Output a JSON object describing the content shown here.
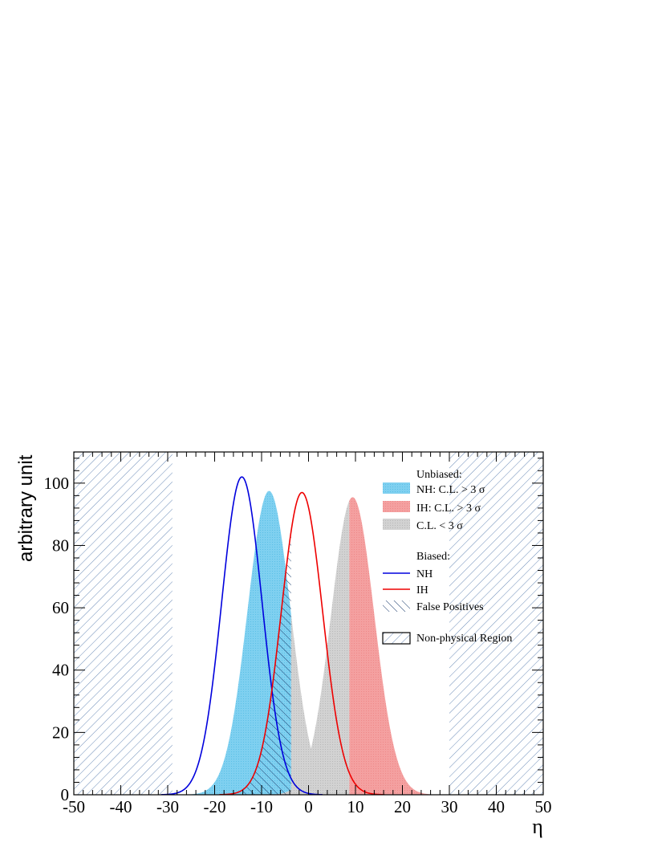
{
  "chart_data": {
    "type": "area",
    "xlabel": "η",
    "ylabel": "arbitrary unit",
    "xlim": [
      -50,
      50
    ],
    "ylim": [
      0,
      110
    ],
    "x_ticks": [
      "-50",
      "-40",
      "-30",
      "-20",
      "-10",
      "0",
      "10",
      "20",
      "30",
      "40",
      "50"
    ],
    "y_ticks": [
      "0",
      "20",
      "40",
      "60",
      "80",
      "100"
    ],
    "colors": {
      "nh_fill": "#7fd0f0",
      "ih_fill": "#f4a0a0",
      "cl_fill": "#cdcdcd",
      "nh_line": "#0000dd",
      "ih_line": "#ee0000",
      "hatch": "#5b7fb0"
    },
    "legend": {
      "unbiased_header": "Unbiased:",
      "nh_fill_label": "NH: C.L. > 3 σ",
      "ih_fill_label": "IH: C.L. > 3 σ",
      "cl_label": "C.L. < 3 σ",
      "biased_header": "Biased:",
      "nh_line_label": "NH",
      "ih_line_label": "IH",
      "false_pos_label": "False Positives",
      "nonphys_label": "Non-physical Region",
      "placement": "top-right"
    },
    "series": [
      {
        "name": "NH: C.L. > 3 σ",
        "kind": "unbiased",
        "mean": -8.4,
        "sigma": 4.6,
        "peak": 97.5
      },
      {
        "name": "IH: C.L. > 3 σ",
        "kind": "unbiased",
        "mean": 9.4,
        "sigma": 4.6,
        "peak": 95.5
      },
      {
        "name": "NH",
        "kind": "biased",
        "mean": -14.2,
        "sigma": 4.3,
        "peak": 102
      },
      {
        "name": "IH",
        "kind": "biased",
        "mean": -1.4,
        "sigma": 4.4,
        "peak": 97
      }
    ],
    "cl_threshold": {
      "nh_upper": -3.7,
      "ih_lower": 8.7
    },
    "false_positive_range": [
      -14,
      -3.7
    ],
    "nonphysical_regions": [
      {
        "x": [
          -50,
          -29
        ],
        "ymax": 110
      },
      {
        "x": [
          30,
          50
        ],
        "ymax": 110,
        "ymax_right_section": 47
      }
    ],
    "grid": false
  }
}
